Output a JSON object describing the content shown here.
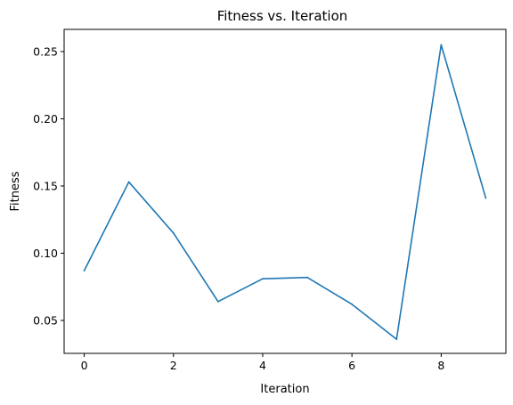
{
  "chart_data": {
    "type": "line",
    "title": "Fitness vs. Iteration",
    "xlabel": "Iteration",
    "ylabel": "Fitness",
    "xlim": [
      -0.45,
      9.45
    ],
    "ylim": [
      0.0255,
      0.2665
    ],
    "xticks": [
      0,
      2,
      4,
      6,
      8
    ],
    "xtick_labels": [
      "0",
      "2",
      "4",
      "6",
      "8"
    ],
    "yticks": [
      0.05,
      0.1,
      0.15,
      0.2,
      0.25
    ],
    "ytick_labels": [
      "0.05",
      "0.10",
      "0.15",
      "0.20",
      "0.25"
    ],
    "grid": false,
    "legend": "none",
    "series": [
      {
        "color": "#1f77b4",
        "x": [
          0,
          1,
          2,
          3,
          4,
          5,
          6,
          7,
          8,
          9
        ],
        "values": [
          0.087,
          0.153,
          0.115,
          0.064,
          0.081,
          0.082,
          0.062,
          0.036,
          0.255,
          0.141
        ]
      }
    ]
  }
}
